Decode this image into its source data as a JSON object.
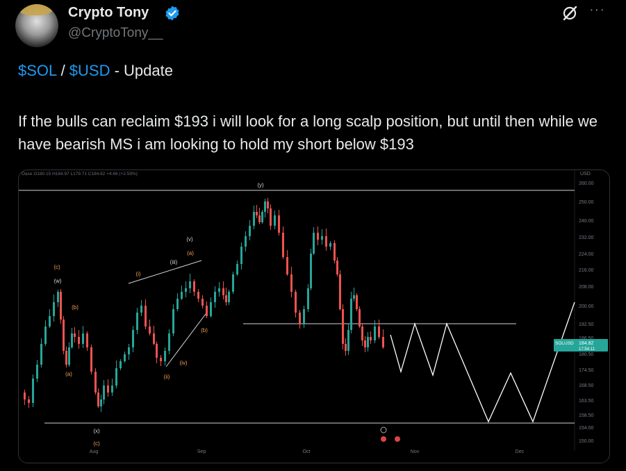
{
  "author": {
    "name": "Crypto Tony",
    "handle": "@CryptoTony__"
  },
  "tweet": {
    "ticker1": "$SOL",
    "separator": " / ",
    "ticker2": "$USD",
    "suffix": " - Update",
    "body": "If the bulls can reclaim $193 i will look for a long scalp position, but until then while we have bearish MS i am looking to hold my short below $193"
  },
  "colors": {
    "accent": "#1d9bf0",
    "bull": "#26a69a",
    "bear": "#ef5350",
    "wave_label": "#f0a050"
  },
  "icons": [
    "verified-badge-icon",
    "grok-icon",
    "more-icon"
  ],
  "chart_data": {
    "type": "candlestick",
    "header_text": "Oase  O180.15  H184.97  L179.71  C184.82  +4.66 (+2.59%)",
    "price_axis_title": "USD",
    "y_ticks": [
      "260.00",
      "250.00",
      "240.00",
      "232.00",
      "224.00",
      "216.00",
      "208.00",
      "200.00",
      "192.50",
      "186.50",
      "180.50",
      "174.50",
      "168.50",
      "163.50",
      "158.50",
      "154.00",
      "150.00"
    ],
    "x_ticks": [
      "Aug",
      "Sep",
      "Oct",
      "Nov",
      "Dec"
    ],
    "current_price_label": "SOLUSD",
    "current_price": "184.82",
    "countdown": "17:54:11",
    "horizontal_levels": [
      255,
      192.5,
      154
    ],
    "wave_labels": [
      "(c)",
      "(w)",
      "(b)",
      "(a)",
      "(x)",
      "(c)",
      "(i)",
      "(ii)",
      "(iii)",
      "(iv)",
      "(v)",
      "(a)",
      "(b)",
      "(y)"
    ]
  }
}
